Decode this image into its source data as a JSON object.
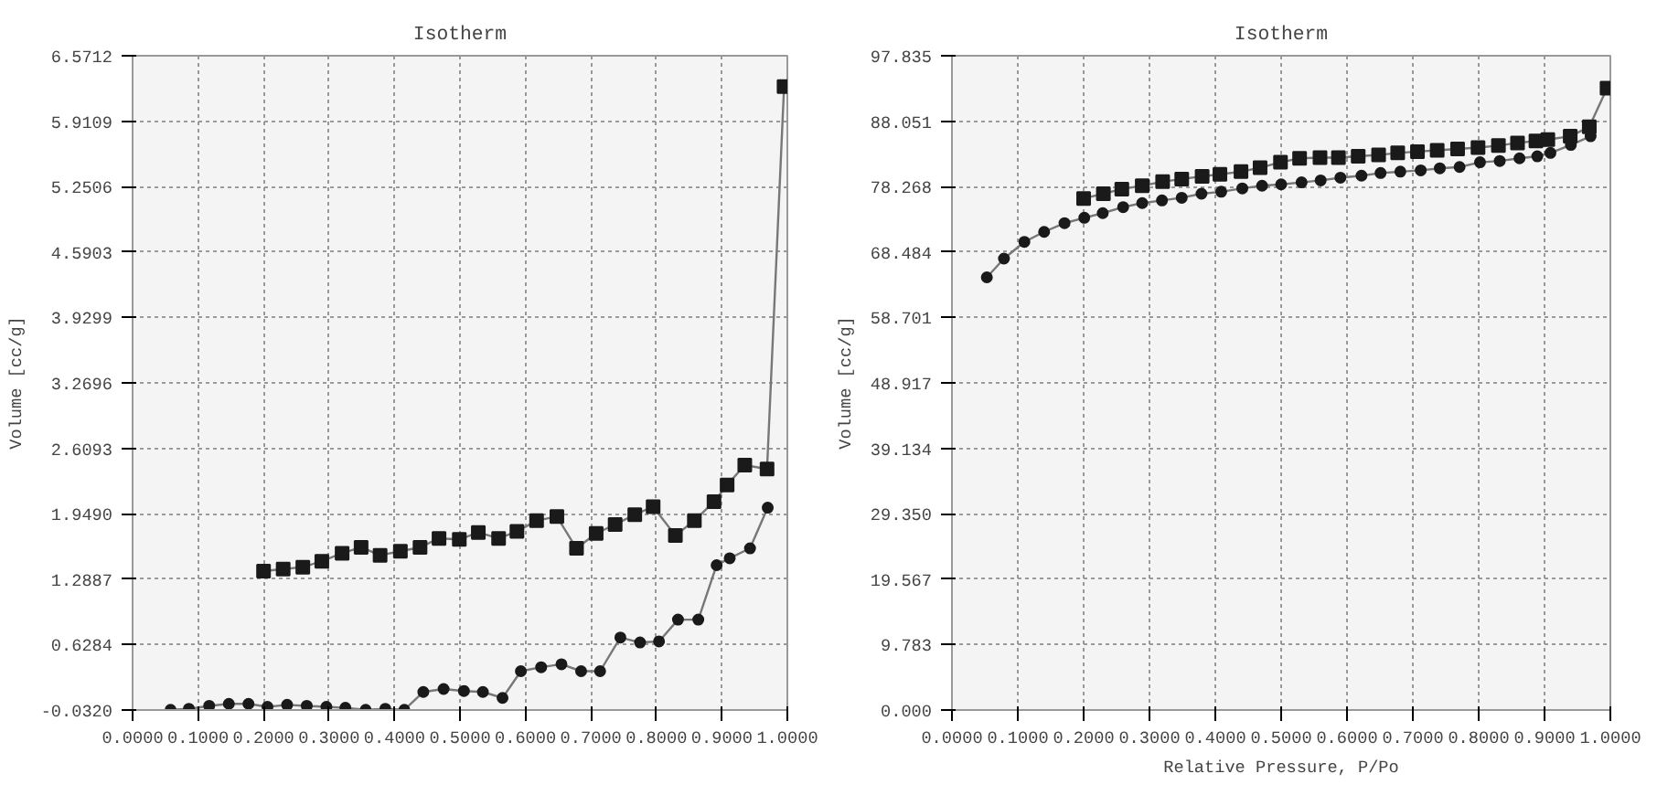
{
  "chart_data": [
    {
      "type": "line",
      "title": "Isotherm",
      "ylabel": "Volume [cc/g]",
      "grid": true,
      "line_style": "solid",
      "xlim": [
        0,
        1
      ],
      "ylim": [
        -0.032,
        6.5712
      ],
      "xticks": [
        {
          "value": 0,
          "label": "0.0000"
        },
        {
          "value": 0.1,
          "label": "0.1000"
        },
        {
          "value": 0.2,
          "label": "0.2000"
        },
        {
          "value": 0.3,
          "label": "0.3000"
        },
        {
          "value": 0.4,
          "label": "0.4000"
        },
        {
          "value": 0.5,
          "label": "0.5000"
        },
        {
          "value": 0.6,
          "label": "0.6000"
        },
        {
          "value": 0.7,
          "label": "0.7000"
        },
        {
          "value": 0.8,
          "label": "0.8000"
        },
        {
          "value": 0.9,
          "label": "0.9000"
        },
        {
          "value": 1,
          "label": "1.0000"
        }
      ],
      "yticks": [
        {
          "value": -0.032,
          "label": "-0.0320"
        },
        {
          "value": 0.6284,
          "label": "0.6284"
        },
        {
          "value": 1.2887,
          "label": "1.2887"
        },
        {
          "value": 1.949,
          "label": "1.9490"
        },
        {
          "value": 2.6093,
          "label": "2.6093"
        },
        {
          "value": 3.2696,
          "label": "3.2696"
        },
        {
          "value": 3.9299,
          "label": "3.9299"
        },
        {
          "value": 4.5903,
          "label": "4.5903"
        },
        {
          "value": 5.2506,
          "label": "5.2506"
        },
        {
          "value": 5.9109,
          "label": "5.9109"
        },
        {
          "value": 6.5712,
          "label": "6.5712"
        }
      ],
      "series": [
        {
          "color": "#1a1a1a",
          "marker": "circle",
          "x": [
            0.058,
            0.086,
            0.117,
            0.147,
            0.177,
            0.206,
            0.236,
            0.266,
            0.296,
            0.325,
            0.356,
            0.386,
            0.415,
            0.444,
            0.475,
            0.506,
            0.535,
            0.565,
            0.593,
            0.624,
            0.655,
            0.685,
            0.714,
            0.745,
            0.775,
            0.804,
            0.833,
            0.864,
            0.892,
            0.912,
            0.943,
            0.97
          ],
          "values": [
            -0.03,
            -0.02,
            0.01,
            0.03,
            0.03,
            0.0,
            0.02,
            0.01,
            0.0,
            -0.01,
            -0.03,
            -0.02,
            -0.03,
            0.15,
            0.18,
            0.16,
            0.15,
            0.09,
            0.36,
            0.4,
            0.43,
            0.36,
            0.36,
            0.7,
            0.65,
            0.66,
            0.88,
            0.88,
            1.43,
            1.5,
            1.6,
            2.01
          ]
        },
        {
          "color": "#1a1a1a",
          "marker": "square",
          "x": [
            0.995,
            0.969,
            0.935,
            0.908,
            0.888,
            0.858,
            0.829,
            0.795,
            0.767,
            0.737,
            0.708,
            0.678,
            0.648,
            0.617,
            0.587,
            0.559,
            0.528,
            0.499,
            0.468,
            0.439,
            0.409,
            0.378,
            0.349,
            0.32,
            0.289,
            0.26,
            0.23,
            0.2
          ],
          "values": [
            6.26,
            2.4,
            2.44,
            2.24,
            2.07,
            1.88,
            1.73,
            2.02,
            1.94,
            1.84,
            1.75,
            1.6,
            1.92,
            1.88,
            1.77,
            1.7,
            1.76,
            1.69,
            1.7,
            1.61,
            1.57,
            1.53,
            1.61,
            1.55,
            1.47,
            1.41,
            1.39,
            1.37
          ]
        }
      ]
    },
    {
      "type": "line",
      "title": "Isotherm",
      "xlabel": "Relative Pressure, P/Po",
      "ylabel": "Volume [cc/g]",
      "grid": true,
      "line_style": "solid",
      "xlim": [
        0,
        1
      ],
      "ylim": [
        0,
        97.835
      ],
      "xticks": [
        {
          "value": 0,
          "label": "0.0000"
        },
        {
          "value": 0.1,
          "label": "0.1000"
        },
        {
          "value": 0.2,
          "label": "0.2000"
        },
        {
          "value": 0.3,
          "label": "0.3000"
        },
        {
          "value": 0.4,
          "label": "0.4000"
        },
        {
          "value": 0.5,
          "label": "0.5000"
        },
        {
          "value": 0.6,
          "label": "0.6000"
        },
        {
          "value": 0.7,
          "label": "0.7000"
        },
        {
          "value": 0.8,
          "label": "0.8000"
        },
        {
          "value": 0.9,
          "label": "0.9000"
        },
        {
          "value": 1,
          "label": "1.0000"
        }
      ],
      "yticks": [
        {
          "value": 0,
          "label": "0.000"
        },
        9.783,
        19.567,
        {
          "value": 29.35,
          "label": "29.350"
        },
        39.134,
        48.917,
        58.701,
        68.484,
        78.268,
        88.051,
        97.835
      ],
      "series": [
        {
          "color": "#1a1a1a",
          "marker": "circle",
          "x": [
            0.053,
            0.079,
            0.11,
            0.14,
            0.171,
            0.201,
            0.229,
            0.26,
            0.289,
            0.319,
            0.349,
            0.379,
            0.409,
            0.441,
            0.471,
            0.5,
            0.531,
            0.56,
            0.59,
            0.622,
            0.651,
            0.681,
            0.712,
            0.741,
            0.771,
            0.802,
            0.832,
            0.862,
            0.889,
            0.909,
            0.94,
            0.97
          ],
          "values": [
            64.7,
            67.5,
            70.0,
            71.5,
            72.8,
            73.6,
            74.3,
            75.2,
            75.8,
            76.2,
            76.6,
            77.2,
            77.5,
            78.0,
            78.4,
            78.6,
            78.9,
            79.2,
            79.6,
            79.9,
            80.3,
            80.5,
            80.7,
            81.0,
            81.2,
            81.9,
            82.1,
            82.5,
            82.8,
            83.3,
            84.5,
            85.8
          ]
        },
        {
          "color": "#1a1a1a",
          "marker": "square",
          "x": [
            0.995,
            0.968,
            0.939,
            0.905,
            0.887,
            0.859,
            0.83,
            0.799,
            0.768,
            0.737,
            0.707,
            0.677,
            0.648,
            0.617,
            0.587,
            0.559,
            0.528,
            0.499,
            0.468,
            0.439,
            0.407,
            0.38,
            0.349,
            0.32,
            0.289,
            0.258,
            0.23,
            0.2
          ],
          "values": [
            93.0,
            87.2,
            85.8,
            85.3,
            85.1,
            84.8,
            84.4,
            84.1,
            83.9,
            83.7,
            83.5,
            83.3,
            83.0,
            82.8,
            82.6,
            82.6,
            82.5,
            81.9,
            81.1,
            80.5,
            80.1,
            79.8,
            79.4,
            79.0,
            78.4,
            77.9,
            77.2,
            76.5
          ]
        }
      ]
    }
  ]
}
